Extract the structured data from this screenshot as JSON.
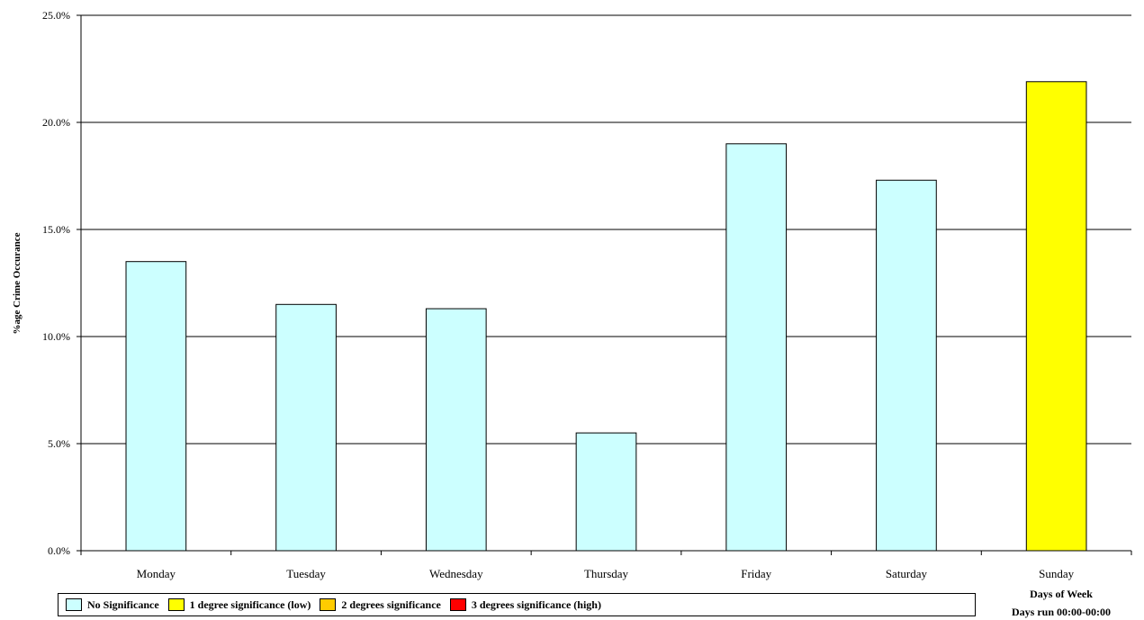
{
  "chart_data": {
    "type": "bar",
    "categories": [
      "Monday",
      "Tuesday",
      "Wednesday",
      "Thursday",
      "Friday",
      "Saturday",
      "Sunday"
    ],
    "values": [
      13.5,
      11.5,
      11.3,
      5.5,
      19.0,
      17.3,
      21.9
    ],
    "significance": [
      "No Significance",
      "No Significance",
      "No Significance",
      "No Significance",
      "No Significance",
      "No Significance",
      "1 degree significance (low)"
    ],
    "ylabel": "%age  Crime Occurance",
    "xlabel": "Days of Week",
    "xlabel_note": "Days run 00:00-00:00",
    "ylim": [
      0,
      25
    ],
    "yticks": [
      "0.0%",
      "5.0%",
      "10.0%",
      "15.0%",
      "20.0%",
      "25.0%"
    ],
    "grid": true,
    "legend_position": "bottom-left"
  },
  "legend": [
    {
      "label": "No Significance",
      "color": "#ccffff"
    },
    {
      "label": "1 degree significance (low)",
      "color": "#ffff00"
    },
    {
      "label": "2 degrees significance",
      "color": "#ffcc00"
    },
    {
      "label": "3 degrees significance (high)",
      "color": "#ff0000"
    }
  ]
}
